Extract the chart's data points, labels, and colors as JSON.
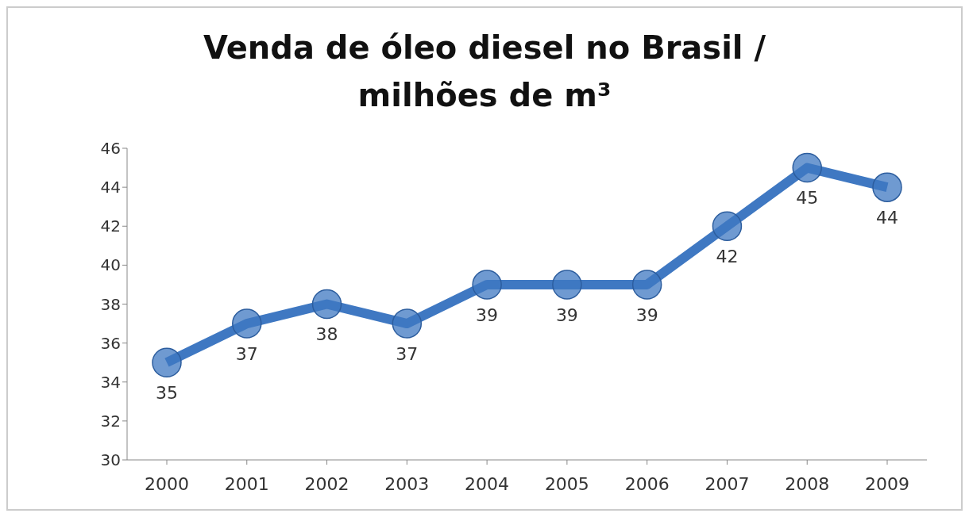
{
  "chart_data": {
    "type": "line",
    "title": "Venda de óleo diesel no Brasil / milhões de m³",
    "categories": [
      "2000",
      "2001",
      "2002",
      "2003",
      "2004",
      "2005",
      "2006",
      "2007",
      "2008",
      "2009"
    ],
    "series": [
      {
        "color": "#3f78c2",
        "values": [
          35,
          37,
          38,
          37,
          39,
          39,
          39,
          42,
          45,
          44
        ]
      }
    ],
    "ylim": [
      30,
      46
    ],
    "yticks": [
      30,
      32,
      34,
      36,
      38,
      40,
      42,
      44,
      46
    ],
    "data_labels": true,
    "marker": "circle",
    "line_style": "solid"
  }
}
